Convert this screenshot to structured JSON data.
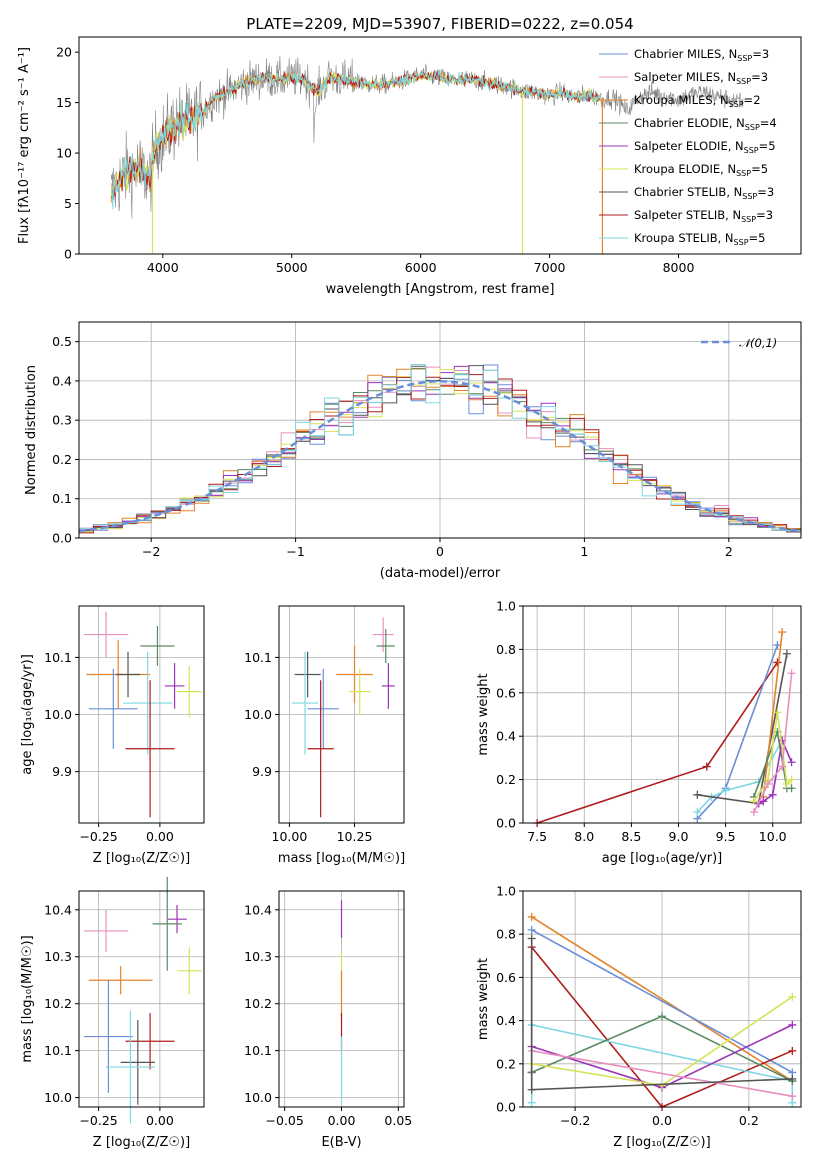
{
  "colors": {
    "Chabrier MILES": "#6a8fd8",
    "Salpeter MILES": "#e88fbf",
    "Kroupa MILES": "#e5832a",
    "Chabrier ELODIE": "#5b8a62",
    "Salpeter ELODIE": "#9b35b8",
    "Kroupa ELODIE": "#d6e35a",
    "Chabrier STELIB": "#555555",
    "Salpeter STELIB": "#b01c1c",
    "Kroupa STELIB": "#7fd7e2"
  },
  "chart_data": [
    {
      "id": "spectrum",
      "type": "line",
      "title": "PLATE=2209, MJD=53907, FIBERID=0222, z=0.054",
      "xlabel": "wavelength [Angstrom, rest frame]",
      "ylabel": "Flux [fλ10⁻¹⁷ erg cm⁻² s⁻¹ A⁻¹]",
      "xlim": [
        3350,
        8950
      ],
      "ylim": [
        0,
        21.5
      ],
      "xticks": [
        "4000",
        "5000",
        "6000",
        "7000",
        "8000"
      ],
      "yticks": [
        "0",
        "5",
        "10",
        "15",
        "20"
      ],
      "legend_position": "top-right",
      "legend": [
        {
          "name": "Chabrier MILES",
          "nssp": "3"
        },
        {
          "name": "Salpeter MILES",
          "nssp": "3"
        },
        {
          "name": "Kroupa MILES",
          "nssp": "2"
        },
        {
          "name": "Chabrier ELODIE",
          "nssp": "4"
        },
        {
          "name": "Salpeter ELODIE",
          "nssp": "5"
        },
        {
          "name": "Kroupa ELODIE",
          "nssp": "5"
        },
        {
          "name": "Chabrier STELIB",
          "nssp": "3"
        },
        {
          "name": "Salpeter STELIB",
          "nssp": "3"
        },
        {
          "name": "Kroupa STELIB",
          "nssp": "5"
        }
      ],
      "continuum": [
        [
          3600,
          6
        ],
        [
          3700,
          8
        ],
        [
          3800,
          8.5
        ],
        [
          3900,
          7.5
        ],
        [
          3950,
          11
        ],
        [
          4000,
          11.5
        ],
        [
          4100,
          13
        ],
        [
          4200,
          13.2
        ],
        [
          4300,
          14
        ],
        [
          4400,
          15.5
        ],
        [
          4500,
          16
        ],
        [
          4600,
          16.8
        ],
        [
          4700,
          17.2
        ],
        [
          4800,
          17.5
        ],
        [
          4900,
          17.2
        ],
        [
          5000,
          17.5
        ],
        [
          5100,
          17.3
        ],
        [
          5200,
          16
        ],
        [
          5300,
          17.6
        ],
        [
          5400,
          17.2
        ],
        [
          5500,
          17.1
        ],
        [
          5600,
          16.8
        ],
        [
          5700,
          16.8
        ],
        [
          5800,
          17.0
        ],
        [
          5900,
          17.3
        ],
        [
          6000,
          17.7
        ],
        [
          6100,
          17.6
        ],
        [
          6200,
          17.3
        ],
        [
          6300,
          17.2
        ],
        [
          6400,
          17.3
        ],
        [
          6500,
          17.0
        ],
        [
          6600,
          16.8
        ],
        [
          6700,
          16.5
        ],
        [
          6800,
          16.1
        ],
        [
          6900,
          16.0
        ],
        [
          7000,
          15.7
        ],
        [
          7100,
          16.0
        ],
        [
          7200,
          15.5
        ],
        [
          7300,
          15.8
        ],
        [
          7400,
          15.4
        ],
        [
          7500,
          15.5
        ],
        [
          7600,
          14.2
        ],
        [
          7700,
          15.6
        ],
        [
          7800,
          16.0
        ],
        [
          7900,
          15.7
        ],
        [
          8000,
          15.3
        ],
        [
          8100,
          15.8
        ],
        [
          8200,
          16.0
        ],
        [
          8300,
          15.6
        ],
        [
          8400,
          15.3
        ],
        [
          8500,
          15.0
        ]
      ],
      "model_range": [
        3600,
        7400
      ],
      "model_drop_lines": [
        {
          "x": 3920,
          "series": "Kroupa ELODIE"
        },
        {
          "x": 6790,
          "series": "Kroupa ELODIE"
        },
        {
          "x": 7410,
          "series": "Kroupa MILES"
        }
      ]
    },
    {
      "id": "residuals",
      "type": "histogram",
      "xlabel": "(data-model)/error",
      "ylabel": "Normed distribution",
      "xlim": [
        -2.5,
        2.5
      ],
      "ylim": [
        0,
        0.55
      ],
      "xticks": [
        "−2",
        "−1",
        "0",
        "1",
        "2"
      ],
      "yticks": [
        "0.0",
        "0.1",
        "0.2",
        "0.3",
        "0.4",
        "0.5"
      ],
      "grid": true,
      "legend_position": "top-right",
      "reference_curve": {
        "label": "𝒩(0,1)",
        "style": "dashed",
        "color": "#6a8fd8"
      },
      "bin_width": 0.1
    },
    {
      "id": "age-vs-Z",
      "type": "errorbar",
      "xlabel": "Z [log₁₀(Z/Z☉)]",
      "ylabel": "age  [log₁₀(age/yr)]",
      "xlim": [
        -0.33,
        0.18
      ],
      "ylim": [
        9.81,
        10.19
      ],
      "xticks": [
        "−0.25",
        "0.00"
      ],
      "xtick_values": [
        -0.25,
        0.0
      ],
      "yticks": [
        "9.9",
        "10.0",
        "10.1"
      ],
      "ytick_values": [
        9.9,
        10.0,
        10.1
      ],
      "grid": true,
      "points": [
        {
          "series": "Salpeter MILES",
          "x": -0.22,
          "xerr": 0.09,
          "y": 10.14,
          "yerr": 0.04
        },
        {
          "series": "Chabrier ELODIE",
          "x": -0.01,
          "xerr": 0.07,
          "y": 10.12,
          "yerr": 0.035
        },
        {
          "series": "Kroupa MILES",
          "x": -0.17,
          "xerr": 0.13,
          "y": 10.07,
          "yerr": 0.06
        },
        {
          "series": "Chabrier STELIB",
          "x": -0.13,
          "xerr": 0.05,
          "y": 10.07,
          "yerr": 0.04
        },
        {
          "series": "Salpeter ELODIE",
          "x": 0.06,
          "xerr": 0.04,
          "y": 10.05,
          "yerr": 0.04
        },
        {
          "series": "Kroupa ELODIE",
          "x": 0.12,
          "xerr": 0.05,
          "y": 10.04,
          "yerr": 0.045
        },
        {
          "series": "Kroupa STELIB",
          "x": -0.05,
          "xerr": 0.1,
          "y": 10.02,
          "yerr": 0.09
        },
        {
          "series": "Chabrier MILES",
          "x": -0.19,
          "xerr": 0.1,
          "y": 10.01,
          "yerr": 0.07
        },
        {
          "series": "Salpeter STELIB",
          "x": -0.04,
          "xerr": 0.1,
          "y": 9.94,
          "yerr": 0.12
        }
      ]
    },
    {
      "id": "age-vs-mass",
      "type": "errorbar",
      "xlabel": "mass [log₁₀(M/M☉)]",
      "ylabel": "",
      "xlim": [
        9.96,
        10.44
      ],
      "ylim": [
        9.81,
        10.19
      ],
      "xticks": [
        "10.00",
        "10.25"
      ],
      "xtick_values": [
        10.0,
        10.25
      ],
      "yticks": [
        "9.9",
        "10.0",
        "10.1"
      ],
      "ytick_values": [
        9.9,
        10.0,
        10.1
      ],
      "grid": true,
      "points": [
        {
          "series": "Salpeter MILES",
          "x": 10.36,
          "xerr": 0.04,
          "y": 10.14,
          "yerr": 0.03
        },
        {
          "series": "Chabrier ELODIE",
          "x": 10.37,
          "xerr": 0.035,
          "y": 10.12,
          "yerr": 0.03
        },
        {
          "series": "Kroupa MILES",
          "x": 10.25,
          "xerr": 0.07,
          "y": 10.07,
          "yerr": 0.05
        },
        {
          "series": "Chabrier STELIB",
          "x": 10.07,
          "xerr": 0.05,
          "y": 10.07,
          "yerr": 0.04
        },
        {
          "series": "Salpeter ELODIE",
          "x": 10.38,
          "xerr": 0.025,
          "y": 10.05,
          "yerr": 0.04
        },
        {
          "series": "Kroupa ELODIE",
          "x": 10.27,
          "xerr": 0.04,
          "y": 10.04,
          "yerr": 0.04
        },
        {
          "series": "Kroupa STELIB",
          "x": 10.06,
          "xerr": 0.05,
          "y": 10.02,
          "yerr": 0.09
        },
        {
          "series": "Chabrier MILES",
          "x": 10.13,
          "xerr": 0.06,
          "y": 10.01,
          "yerr": 0.07
        },
        {
          "series": "Salpeter STELIB",
          "x": 10.12,
          "xerr": 0.05,
          "y": 9.94,
          "yerr": 0.12
        }
      ]
    },
    {
      "id": "mass-weight-vs-age",
      "type": "line",
      "xlabel": "age  [log₁₀(age/yr)]",
      "ylabel": "mass weight",
      "xlim": [
        7.35,
        10.3
      ],
      "ylim": [
        0,
        1.0
      ],
      "xticks": [
        "7.5",
        "8.0",
        "8.5",
        "9.0",
        "9.5",
        "10.0"
      ],
      "xtick_values": [
        7.5,
        8.0,
        8.5,
        9.0,
        9.5,
        10.0
      ],
      "yticks": [
        "0.0",
        "0.2",
        "0.4",
        "0.6",
        "0.8",
        "1.0"
      ],
      "ytick_values": [
        0.0,
        0.2,
        0.4,
        0.6,
        0.8,
        1.0
      ],
      "grid": true,
      "series": [
        {
          "name": "Salpeter STELIB",
          "x": [
            7.5,
            9.3,
            10.05
          ],
          "y": [
            0.0,
            0.26,
            0.74
          ]
        },
        {
          "name": "Chabrier MILES",
          "x": [
            9.2,
            9.5,
            10.05
          ],
          "y": [
            0.02,
            0.16,
            0.82
          ]
        },
        {
          "name": "Kroupa STELIB",
          "x": [
            9.2,
            9.35,
            9.5,
            9.85,
            10.1
          ],
          "y": [
            0.05,
            0.12,
            0.15,
            0.19,
            0.38
          ]
        },
        {
          "name": "Chabrier STELIB",
          "x": [
            9.2,
            9.85,
            10.15
          ],
          "y": [
            0.13,
            0.09,
            0.78
          ]
        },
        {
          "name": "Kroupa MILES",
          "x": [
            9.9,
            10.1
          ],
          "y": [
            0.12,
            0.88
          ]
        },
        {
          "name": "Chabrier ELODIE",
          "x": [
            9.8,
            10.05,
            10.15,
            10.2
          ],
          "y": [
            0.12,
            0.42,
            0.16,
            0.16
          ]
        },
        {
          "name": "Salpeter ELODIE",
          "x": [
            9.85,
            9.9,
            10.0,
            10.1,
            10.2
          ],
          "y": [
            0.09,
            0.1,
            0.13,
            0.38,
            0.28
          ]
        },
        {
          "name": "Kroupa ELODIE",
          "x": [
            9.8,
            9.95,
            10.05,
            10.15,
            10.2
          ],
          "y": [
            0.1,
            0.2,
            0.51,
            0.18,
            0.2
          ]
        },
        {
          "name": "Salpeter MILES",
          "x": [
            9.8,
            9.95,
            10.1,
            10.2
          ],
          "y": [
            0.05,
            0.18,
            0.26,
            0.69
          ]
        }
      ]
    },
    {
      "id": "mass-vs-Z",
      "type": "errorbar",
      "xlabel": "Z [log₁₀(Z/Z☉)]",
      "ylabel": "mass [log₁₀(M/M☉)]",
      "xlim": [
        -0.33,
        0.18
      ],
      "ylim": [
        9.98,
        10.44
      ],
      "xticks": [
        "−0.25",
        "0.00"
      ],
      "xtick_values": [
        -0.25,
        0.0
      ],
      "yticks": [
        "10.0",
        "10.1",
        "10.2",
        "10.3",
        "10.4"
      ],
      "ytick_values": [
        10.0,
        10.1,
        10.2,
        10.3,
        10.4
      ],
      "grid": true,
      "points": [
        {
          "series": "Salpeter MILES",
          "x": -0.22,
          "xerr": 0.09,
          "y": 10.355,
          "yerr": 0.045
        },
        {
          "series": "Salpeter ELODIE",
          "x": 0.07,
          "xerr": 0.04,
          "y": 10.38,
          "yerr": 0.03
        },
        {
          "series": "Chabrier ELODIE",
          "x": 0.03,
          "xerr": 0.06,
          "y": 10.37,
          "yerr": 0.1
        },
        {
          "series": "Kroupa ELODIE",
          "x": 0.12,
          "xerr": 0.05,
          "y": 10.27,
          "yerr": 0.05
        },
        {
          "series": "Kroupa MILES",
          "x": -0.16,
          "xerr": 0.13,
          "y": 10.25,
          "yerr": 0.03
        },
        {
          "series": "Chabrier MILES",
          "x": -0.21,
          "xerr": 0.1,
          "y": 10.13,
          "yerr": 0.12
        },
        {
          "series": "Salpeter STELIB",
          "x": -0.04,
          "xerr": 0.1,
          "y": 10.12,
          "yerr": 0.06
        },
        {
          "series": "Chabrier STELIB",
          "x": -0.09,
          "xerr": 0.07,
          "y": 10.075,
          "yerr": 0.09
        },
        {
          "series": "Kroupa STELIB",
          "x": -0.12,
          "xerr": 0.1,
          "y": 10.065,
          "yerr": 0.12
        }
      ]
    },
    {
      "id": "mass-vs-EBV",
      "type": "errorbar",
      "xlabel": "E(B-V)",
      "ylabel": "",
      "xlim": [
        -0.055,
        0.055
      ],
      "ylim": [
        9.98,
        10.44
      ],
      "xticks": [
        "−0.05",
        "0.00",
        "0.05"
      ],
      "xtick_values": [
        -0.05,
        0.0,
        0.05
      ],
      "yticks": [
        "10.0",
        "10.1",
        "10.2",
        "10.3",
        "10.4"
      ],
      "ytick_values": [
        10.0,
        10.1,
        10.2,
        10.3,
        10.4
      ],
      "grid": true,
      "points": [
        {
          "series": "Salpeter ELODIE",
          "x": 0,
          "xerr": 0,
          "y": 10.38,
          "yerr": 0.04
        },
        {
          "series": "Kroupa ELODIE",
          "x": 0,
          "xerr": 0,
          "y": 10.27,
          "yerr": 0.04
        },
        {
          "series": "Kroupa MILES",
          "x": 0,
          "xerr": 0,
          "y": 10.22,
          "yerr": 0.05
        },
        {
          "series": "Salpeter STELIB",
          "x": 0,
          "xerr": 0,
          "y": 10.14,
          "yerr": 0.04
        },
        {
          "series": "Kroupa STELIB",
          "x": 0,
          "xerr": 0,
          "y": 10.06,
          "yerr": 0.07
        }
      ]
    },
    {
      "id": "mass-weight-vs-Z",
      "type": "line",
      "xlabel": "Z [log₁₀(Z/Z☉)]",
      "ylabel": "mass weight",
      "xlim": [
        -0.32,
        0.32
      ],
      "ylim": [
        0,
        1.0
      ],
      "xticks": [
        "−0.2",
        "0.0",
        "0.2"
      ],
      "xtick_values": [
        -0.2,
        0.0,
        0.2
      ],
      "yticks": [
        "0.0",
        "0.2",
        "0.4",
        "0.6",
        "0.8",
        "1.0"
      ],
      "ytick_values": [
        0.0,
        0.2,
        0.4,
        0.6,
        0.8,
        1.0
      ],
      "grid": true,
      "series": [
        {
          "name": "Kroupa MILES",
          "x": [
            -0.3,
            0.3
          ],
          "y": [
            0.88,
            0.12
          ]
        },
        {
          "name": "Chabrier MILES",
          "x": [
            -0.3,
            0.3
          ],
          "y": [
            0.82,
            0.16
          ]
        },
        {
          "name": "Salpeter STELIB",
          "x": [
            -0.3,
            -0.3,
            0.0,
            0.3
          ],
          "y": [
            0.16,
            0.74,
            0.0,
            0.26
          ]
        },
        {
          "name": "Kroupa STELIB",
          "x": [
            -0.3,
            -0.3,
            0.3,
            0.3
          ],
          "y": [
            0.02,
            0.38,
            0.12,
            0.02
          ]
        },
        {
          "name": "Chabrier ELODIE",
          "x": [
            -0.3,
            0.0,
            0.3
          ],
          "y": [
            0.16,
            0.42,
            0.12
          ]
        },
        {
          "name": "Salpeter ELODIE",
          "x": [
            -0.3,
            0.0,
            0.3
          ],
          "y": [
            0.28,
            0.09,
            0.38
          ]
        },
        {
          "name": "Kroupa ELODIE",
          "x": [
            -0.3,
            0.0,
            0.3
          ],
          "y": [
            0.2,
            0.1,
            0.51
          ]
        },
        {
          "name": "Salpeter MILES",
          "x": [
            -0.3,
            0.3
          ],
          "y": [
            0.26,
            0.05
          ]
        },
        {
          "name": "Chabrier STELIB",
          "x": [
            -0.3,
            -0.3,
            0.3
          ],
          "y": [
            0.78,
            0.08,
            0.13
          ]
        }
      ]
    }
  ]
}
